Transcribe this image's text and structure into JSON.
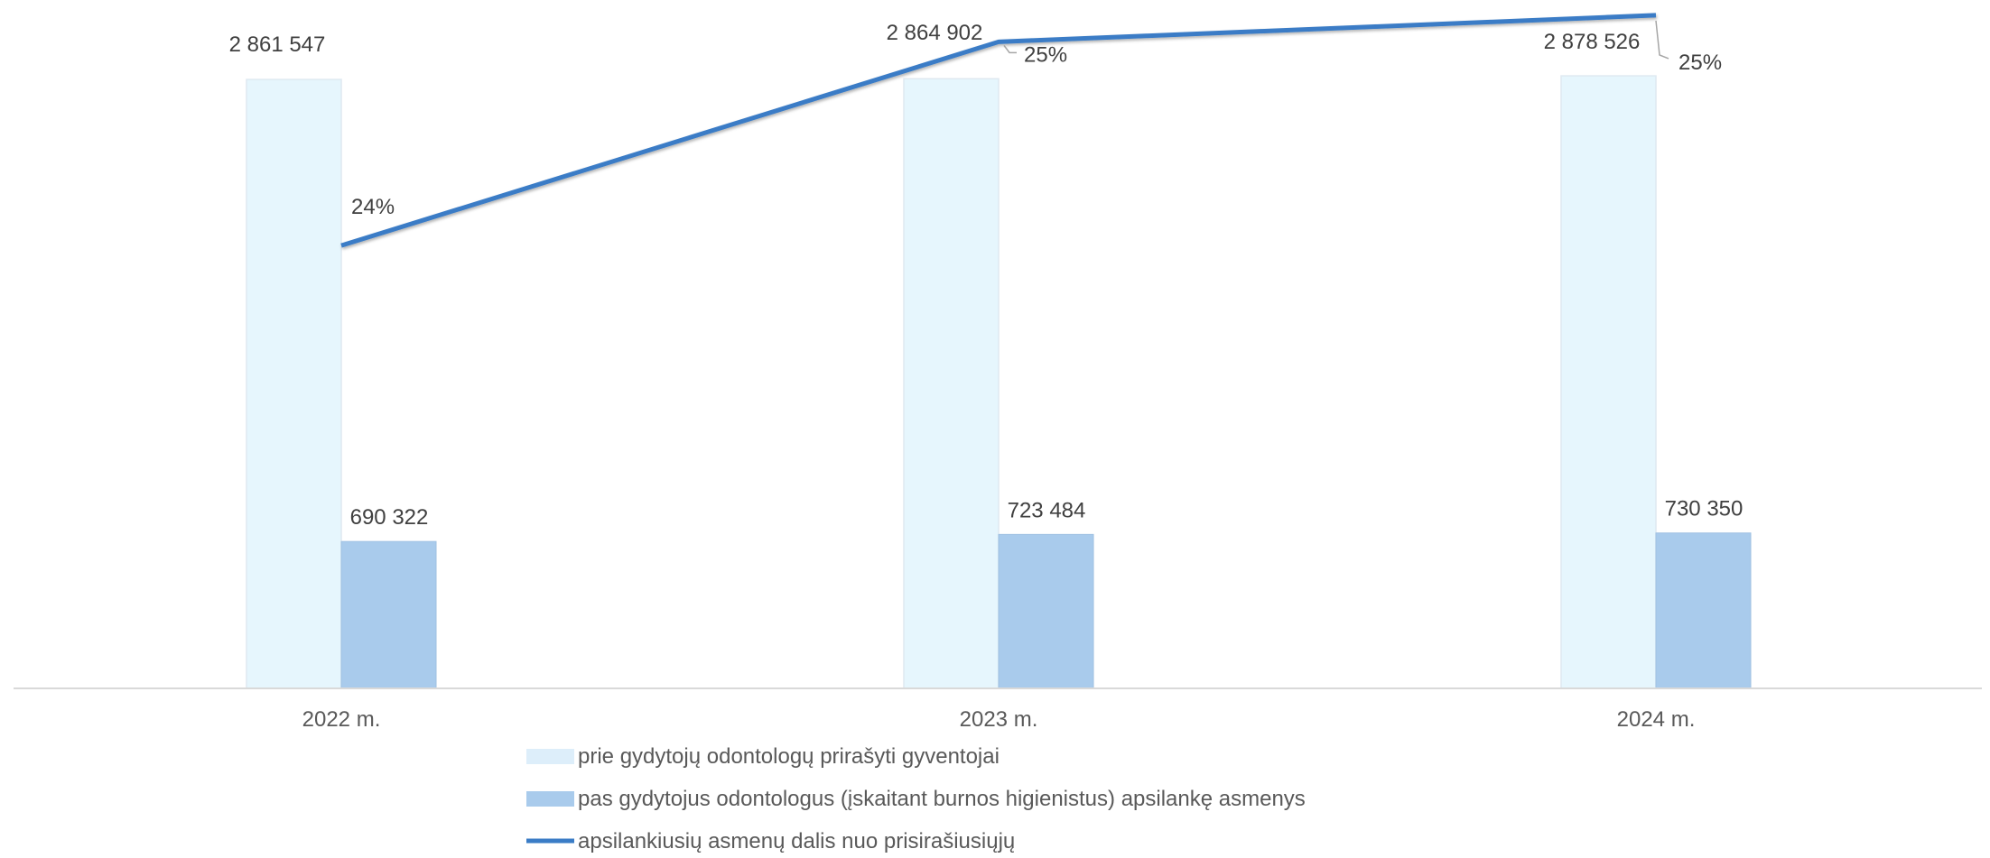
{
  "chart_data": {
    "type": "bar",
    "categories": [
      "2022 m.",
      "2023 m.",
      "2024 m."
    ],
    "series": [
      {
        "name": "prie gydytojų odontologų prirašyti gyventojai",
        "kind": "bar",
        "values": [
          2861547,
          2864902,
          2878526
        ],
        "labels": [
          "2 861 547",
          "2 864 902",
          "2 878 526"
        ],
        "color": "#E6F6FD"
      },
      {
        "name": "pas gydytojus odontologus (įskaitant burnos higienistus) apsilankę asmenys",
        "kind": "bar",
        "values": [
          690322,
          723484,
          730350
        ],
        "labels": [
          "690 322",
          "723 484",
          "730 350"
        ],
        "color": "#A9CBEC"
      },
      {
        "name": "apsilankiusių asmenų dalis nuo prisirašiusiųjų",
        "kind": "line",
        "values": [
          24.1,
          25.25,
          25.4
        ],
        "labels": [
          "24%",
          "25%",
          "25%"
        ],
        "color": "#3A7CC6"
      }
    ],
    "ylim": [
      0,
      2900000
    ],
    "ylim_secondary": [
      21.6,
      25.42
    ],
    "legend_position": "bottom",
    "grid": false
  }
}
